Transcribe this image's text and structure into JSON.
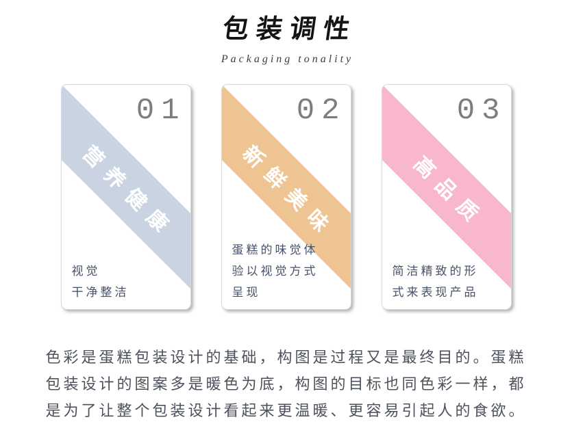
{
  "header": {
    "title": "包装调性",
    "subtitle": "Packaging tonality"
  },
  "cards": [
    {
      "number": "01",
      "ribbon_label": "营养健康",
      "ribbon_color": "#c9d3e2",
      "caption": "视觉\n干净整洁"
    },
    {
      "number": "02",
      "ribbon_label": "新鲜美味",
      "ribbon_color": "#eec592",
      "caption": "蛋糕的味觉体\n验以视觉方式\n呈现"
    },
    {
      "number": "03",
      "ribbon_label": "高品质",
      "ribbon_color": "#f9b7cb",
      "caption": "简洁精致的形\n式来表现产品"
    }
  ],
  "description": "色彩是蛋糕包装设计的基础，构图是过程又是最终目的。蛋糕\n包装设计的图案多是暖色为底，构图的目标也同色彩一样，都\n是为了让整个包装设计看起来更温暖、更容易引起人的食欲。",
  "colors": {
    "ribbon_text": "#ffffff",
    "number_gray": "#7d7d7d",
    "caption_text": "#47526b",
    "paragraph_text": "#4c515c"
  }
}
